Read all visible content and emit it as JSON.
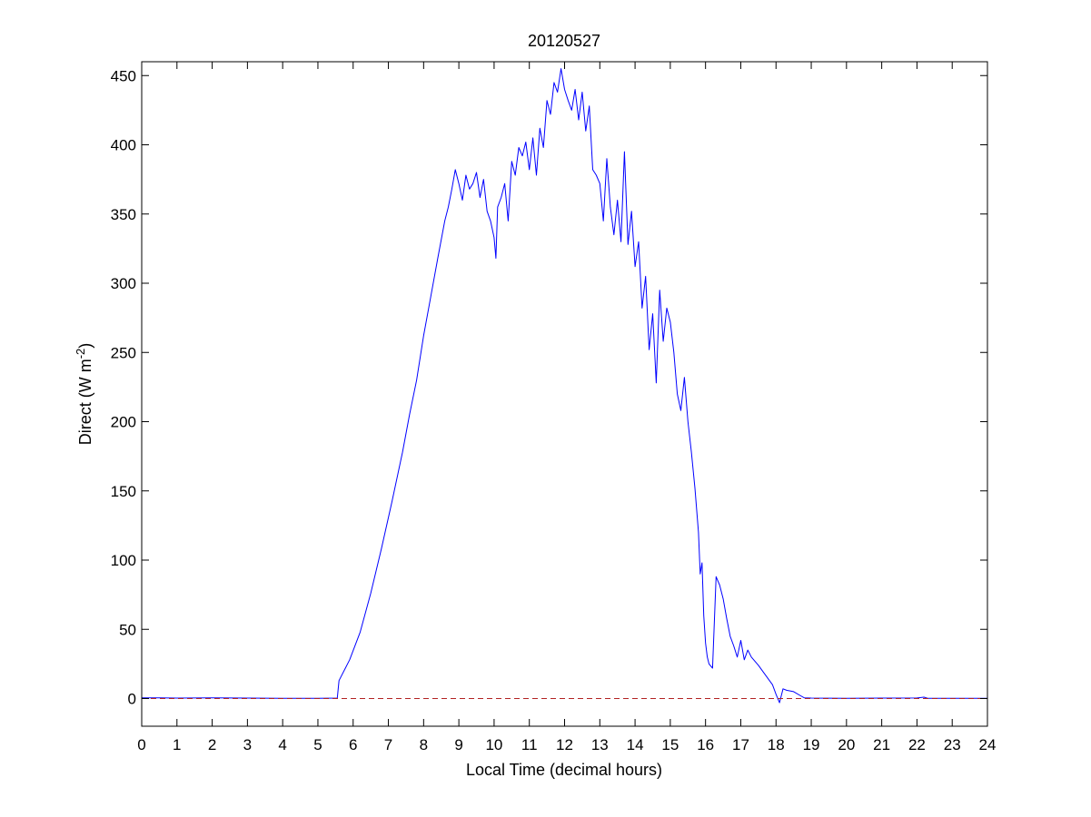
{
  "chart_data": {
    "type": "line",
    "title": "20120527",
    "xlabel": "Local Time (decimal hours)",
    "ylabel": {
      "base": "Direct (W m",
      "superscript": "-2",
      "close": ")"
    },
    "xlim": [
      0,
      24
    ],
    "ylim": [
      -20,
      460
    ],
    "x_ticks": [
      0,
      1,
      2,
      3,
      4,
      5,
      6,
      7,
      8,
      9,
      10,
      11,
      12,
      13,
      14,
      15,
      16,
      17,
      18,
      19,
      20,
      21,
      22,
      23,
      24
    ],
    "y_ticks": [
      0,
      50,
      100,
      150,
      200,
      250,
      300,
      350,
      400,
      450
    ],
    "grid": false,
    "legend": "none",
    "series": [
      {
        "color": "#0000ff",
        "style": "solid",
        "x": [
          0,
          0.5,
          1,
          2,
          3,
          4,
          5,
          5.55,
          5.6,
          5.9,
          6.2,
          6.5,
          6.8,
          7.1,
          7.4,
          7.6,
          7.8,
          8.0,
          8.2,
          8.4,
          8.6,
          8.7,
          8.8,
          8.9,
          9.0,
          9.1,
          9.2,
          9.3,
          9.4,
          9.5,
          9.6,
          9.7,
          9.8,
          9.9,
          10.0,
          10.05,
          10.1,
          10.2,
          10.3,
          10.4,
          10.5,
          10.6,
          10.7,
          10.8,
          10.9,
          11.0,
          11.1,
          11.2,
          11.3,
          11.4,
          11.5,
          11.6,
          11.7,
          11.8,
          11.9,
          12.0,
          12.1,
          12.2,
          12.3,
          12.4,
          12.5,
          12.6,
          12.7,
          12.8,
          12.9,
          13.0,
          13.1,
          13.2,
          13.3,
          13.4,
          13.5,
          13.6,
          13.7,
          13.8,
          13.9,
          14.0,
          14.1,
          14.2,
          14.3,
          14.4,
          14.5,
          14.6,
          14.7,
          14.8,
          14.9,
          15.0,
          15.1,
          15.2,
          15.3,
          15.4,
          15.5,
          15.6,
          15.7,
          15.8,
          15.85,
          15.9,
          15.95,
          16.0,
          16.05,
          16.1,
          16.2,
          16.3,
          16.4,
          16.5,
          16.6,
          16.7,
          16.8,
          16.9,
          17.0,
          17.1,
          17.2,
          17.3,
          17.5,
          17.7,
          17.9,
          18.0,
          18.1,
          18.2,
          18.3,
          18.5,
          18.7,
          18.8,
          19.0,
          20,
          21,
          22,
          22.2,
          22.3,
          23,
          24
        ],
        "y": [
          0.5,
          0.5,
          0.3,
          0.5,
          0.3,
          0.2,
          0.2,
          0.3,
          13,
          28,
          48,
          76,
          108,
          142,
          178,
          205,
          230,
          262,
          290,
          318,
          345,
          355,
          368,
          382,
          372,
          360,
          378,
          368,
          372,
          380,
          362,
          375,
          352,
          345,
          333,
          318,
          355,
          362,
          372,
          345,
          388,
          378,
          398,
          392,
          402,
          382,
          405,
          378,
          412,
          398,
          432,
          422,
          445,
          438,
          455,
          440,
          432,
          425,
          440,
          418,
          438,
          410,
          428,
          382,
          378,
          372,
          345,
          390,
          355,
          335,
          360,
          330,
          395,
          328,
          352,
          312,
          330,
          282,
          305,
          252,
          278,
          228,
          295,
          258,
          282,
          272,
          250,
          220,
          208,
          232,
          200,
          178,
          152,
          120,
          90,
          98,
          60,
          40,
          30,
          25,
          22,
          88,
          82,
          72,
          58,
          45,
          38,
          30,
          42,
          28,
          35,
          30,
          24,
          17,
          10,
          3,
          -3,
          7,
          6,
          5,
          2,
          0.5,
          0.3,
          0.2,
          0.3,
          0.4,
          1.0,
          0.2,
          0.2,
          0.2
        ]
      },
      {
        "color": "#b22222",
        "style": "dashed",
        "x": [
          0,
          24
        ],
        "y": [
          0,
          0
        ]
      }
    ]
  }
}
